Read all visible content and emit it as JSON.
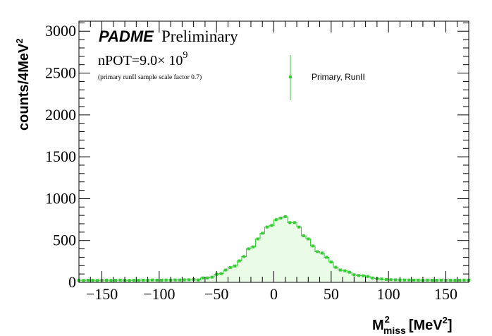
{
  "chart_data": {
    "type": "histogram",
    "title": "",
    "xlabel": "M_miss^2 [MeV^2]",
    "xlabel_main": "M",
    "xlabel_sup": "2",
    "xlabel_sub": "miss",
    "xlabel_unit": "[MeV",
    "xlabel_unit_sup": "2",
    "xlabel_unit_close": "]",
    "ylabel": "counts/4MeV",
    "ylabel_sup": "2",
    "xlim": [
      -170,
      170
    ],
    "ylim": [
      0,
      3120
    ],
    "xticks": [
      -150,
      -100,
      -50,
      0,
      50,
      100,
      150
    ],
    "xtick_labels": [
      "−150",
      "−100",
      "−50",
      "0",
      "50",
      "100",
      "150"
    ],
    "yticks": [
      0,
      500,
      1000,
      1500,
      2000,
      2500,
      3000
    ],
    "ytick_labels": [
      "0",
      "500",
      "1000",
      "1500",
      "2000",
      "2500",
      "3000"
    ],
    "bin_width": 4,
    "grid": false,
    "legend_position": "top-right",
    "series": [
      {
        "name": "Primary, RunII",
        "color": "#33cc33",
        "fill": "#eafbe8",
        "x": [
          -170,
          -166,
          -162,
          -158,
          -154,
          -150,
          -146,
          -142,
          -138,
          -134,
          -130,
          -126,
          -122,
          -118,
          -114,
          -110,
          -106,
          -102,
          -98,
          -94,
          -90,
          -86,
          -82,
          -78,
          -74,
          -70,
          -66,
          -62,
          -58,
          -54,
          -50,
          -46,
          -42,
          -38,
          -34,
          -30,
          -26,
          -22,
          -18,
          -14,
          -10,
          -6,
          -2,
          2,
          6,
          10,
          14,
          18,
          22,
          26,
          30,
          34,
          38,
          42,
          46,
          50,
          54,
          58,
          62,
          66,
          70,
          74,
          78,
          82,
          86,
          90,
          94,
          98,
          102,
          106,
          110,
          114,
          118,
          122,
          126,
          130,
          134,
          138,
          142,
          146,
          150,
          154,
          158,
          162,
          166,
          170
        ],
        "y": [
          25,
          24,
          26,
          25,
          23,
          25,
          26,
          24,
          25,
          27,
          25,
          24,
          26,
          25,
          27,
          26,
          28,
          27,
          26,
          28,
          27,
          29,
          28,
          30,
          31,
          34,
          28,
          53,
          53,
          62,
          96,
          104,
          147,
          178,
          195,
          257,
          308,
          401,
          424,
          519,
          587,
          661,
          680,
          748,
          768,
          785,
          714,
          714,
          661,
          556,
          519,
          435,
          367,
          350,
          299,
          243,
          180,
          147,
          138,
          121,
          90,
          82,
          79,
          70,
          53,
          45,
          40,
          35,
          32,
          30,
          29,
          28,
          28,
          27,
          27,
          26,
          27,
          26,
          26,
          27,
          26,
          26,
          25,
          26,
          27,
          26
        ]
      }
    ],
    "annotations": {
      "experiment": "PADME",
      "status": "Preliminary",
      "npot_prefix": "nPOT=9.0× 10",
      "npot_exp": "9",
      "note": "(primary runII sample scale factor 0.7)"
    }
  }
}
